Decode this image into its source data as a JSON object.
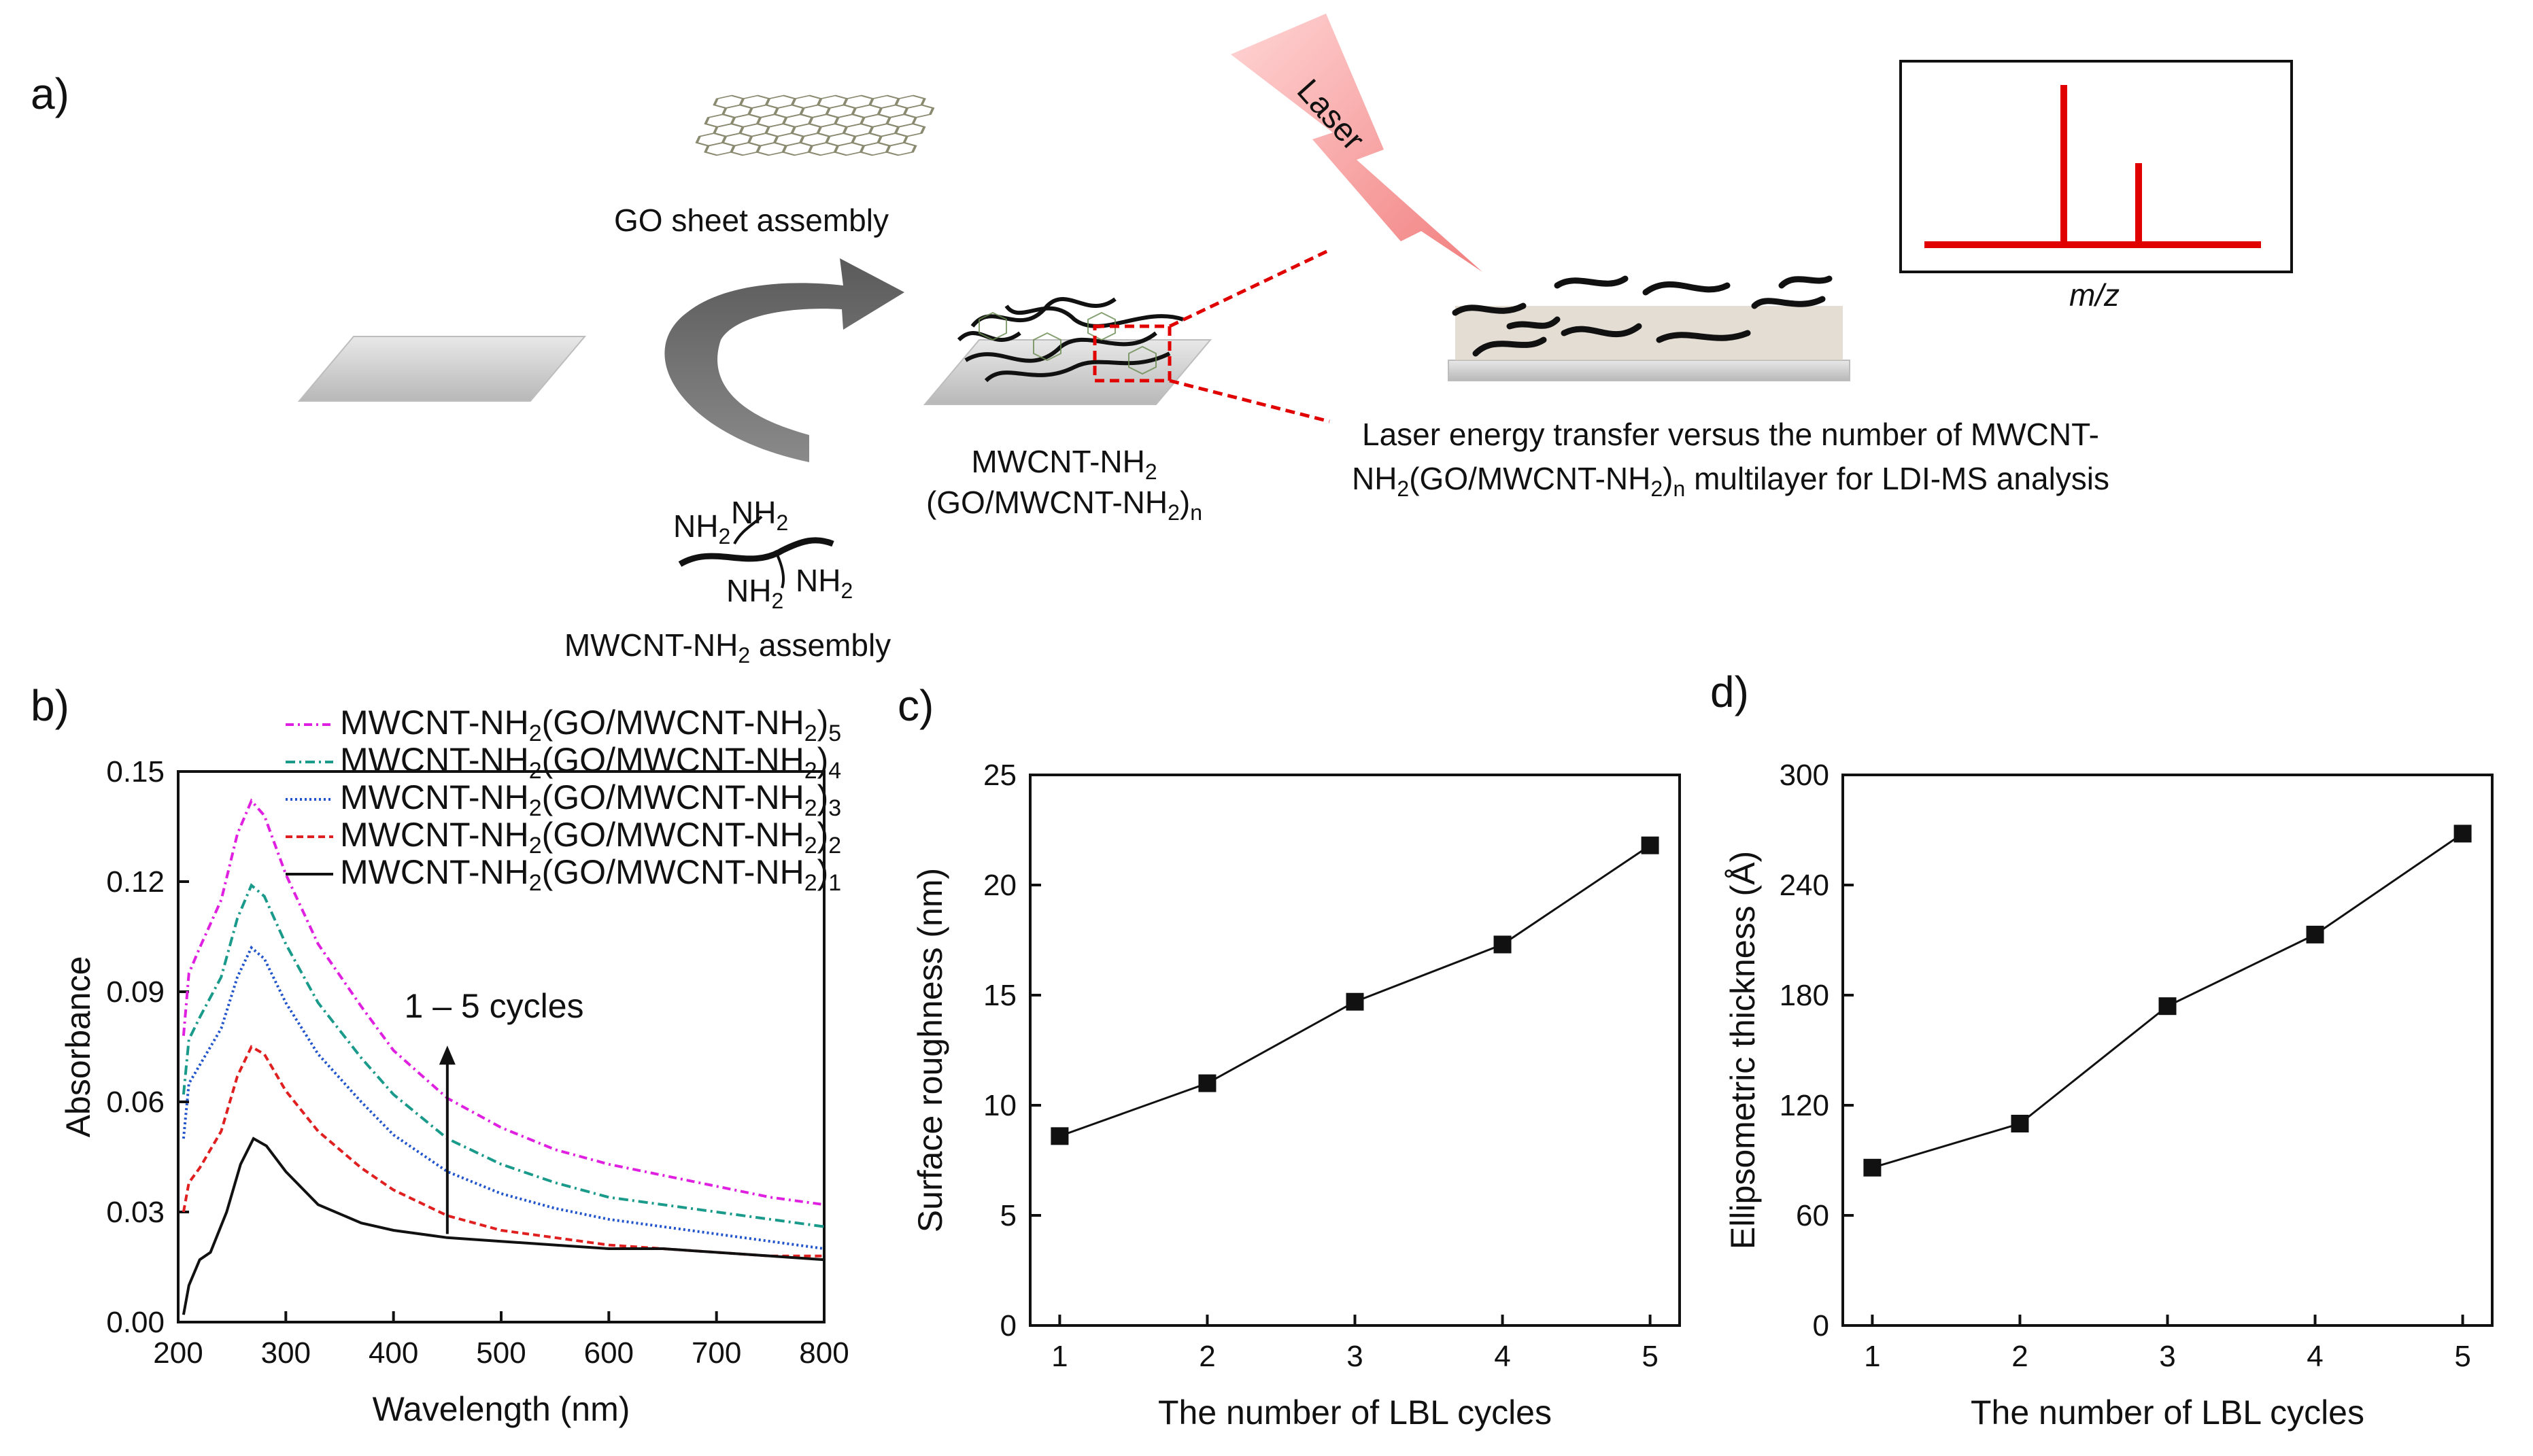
{
  "panels": {
    "a": "a)",
    "b": "b)",
    "c": "c)",
    "d": "d)"
  },
  "schematic": {
    "go_sheet_label": "GO sheet assembly",
    "mwcnt_assembly_label": "MWCNT-NH",
    "mwcnt_assembly_sub": "2",
    "mwcnt_assembly_tail": " assembly",
    "nh2_labels": [
      "NH",
      "NH",
      "NH",
      "NH"
    ],
    "nh2_sub": "2",
    "multilayer_line1": "MWCNT-NH",
    "multilayer_line1_sub": "2",
    "multilayer_line2": "(GO/MWCNT-NH",
    "multilayer_line2_sub": "2",
    "multilayer_line2_tail": ")",
    "multilayer_line2_n": "n",
    "laser_label": "Laser",
    "desc_line1": "Laser energy transfer versus the number of MWCNT-",
    "desc_line2_a": "NH",
    "desc_line2_sub": "2",
    "desc_line2_b": "(GO/MWCNT-NH",
    "desc_line2_sub2": "2",
    "desc_line2_c": ")",
    "desc_line2_n": "n",
    "desc_line2_d": " multilayer for LDI-MS  analysis",
    "mz_label": "m/z",
    "colors": {
      "laser": "#f08080",
      "spectrum": "#e00000",
      "dashed_box": "#e00000",
      "arrow": "#666666"
    }
  },
  "chart_data": [
    {
      "id": "b",
      "type": "line",
      "title": "",
      "xlabel": "Wavelength (nm)",
      "ylabel": "Absorbance",
      "xlim": [
        200,
        800
      ],
      "ylim": [
        0,
        0.15
      ],
      "xticks": [
        200,
        300,
        400,
        500,
        600,
        700,
        800
      ],
      "yticks": [
        0.0,
        0.03,
        0.06,
        0.09,
        0.12,
        0.15
      ],
      "ytick_labels": [
        "0.00",
        "0.03",
        "0.06",
        "0.09",
        "0.12",
        "0.15"
      ],
      "annotation": "1 – 5 cycles",
      "legend_prefix": "MWCNT-NH",
      "legend_mid": "(GO/MWCNT-NH",
      "legend_sub": "2",
      "legend_close": ")",
      "series": [
        {
          "name": "MWCNT-NH2(GO/MWCNT-NH2)5",
          "n": "5",
          "color": "#e020e0",
          "dash": "12,6,3,6",
          "x": [
            205,
            210,
            220,
            240,
            255,
            268,
            280,
            300,
            330,
            370,
            400,
            450,
            500,
            550,
            600,
            650,
            700,
            750,
            800
          ],
          "y": [
            0.078,
            0.095,
            0.102,
            0.115,
            0.133,
            0.142,
            0.138,
            0.122,
            0.103,
            0.086,
            0.074,
            0.061,
            0.053,
            0.047,
            0.043,
            0.04,
            0.037,
            0.034,
            0.032
          ]
        },
        {
          "name": "MWCNT-NH2(GO/MWCNT-NH2)4",
          "n": "4",
          "color": "#1a9a8a",
          "dash": "14,6,3,6",
          "x": [
            205,
            210,
            220,
            240,
            255,
            268,
            280,
            300,
            330,
            370,
            400,
            450,
            500,
            550,
            600,
            650,
            700,
            750,
            800
          ],
          "y": [
            0.062,
            0.077,
            0.083,
            0.094,
            0.11,
            0.119,
            0.116,
            0.103,
            0.087,
            0.072,
            0.062,
            0.05,
            0.043,
            0.038,
            0.034,
            0.032,
            0.03,
            0.028,
            0.026
          ]
        },
        {
          "name": "MWCNT-NH2(GO/MWCNT-NH2)3",
          "n": "3",
          "color": "#2255cc",
          "dash": "3,4",
          "x": [
            205,
            210,
            220,
            240,
            255,
            268,
            280,
            300,
            330,
            370,
            400,
            450,
            500,
            550,
            600,
            650,
            700,
            750,
            800
          ],
          "y": [
            0.05,
            0.065,
            0.07,
            0.08,
            0.094,
            0.102,
            0.099,
            0.087,
            0.073,
            0.06,
            0.051,
            0.041,
            0.035,
            0.031,
            0.028,
            0.026,
            0.024,
            0.022,
            0.02
          ]
        },
        {
          "name": "MWCNT-NH2(GO/MWCNT-NH2)2",
          "n": "2",
          "color": "#e02020",
          "dash": "10,6",
          "x": [
            205,
            210,
            220,
            240,
            255,
            268,
            280,
            300,
            330,
            370,
            400,
            450,
            500,
            550,
            600,
            650,
            700,
            750,
            800
          ],
          "y": [
            0.03,
            0.038,
            0.042,
            0.052,
            0.067,
            0.075,
            0.073,
            0.063,
            0.052,
            0.042,
            0.036,
            0.029,
            0.025,
            0.023,
            0.021,
            0.02,
            0.019,
            0.018,
            0.018
          ]
        },
        {
          "name": "MWCNT-NH2(GO/MWCNT-NH2)1",
          "n": "1",
          "color": "#111111",
          "dash": "",
          "x": [
            205,
            210,
            220,
            230,
            245,
            258,
            270,
            282,
            300,
            330,
            370,
            400,
            450,
            500,
            550,
            600,
            650,
            700,
            750,
            800
          ],
          "y": [
            0.002,
            0.01,
            0.017,
            0.019,
            0.03,
            0.043,
            0.05,
            0.048,
            0.041,
            0.032,
            0.027,
            0.025,
            0.023,
            0.022,
            0.021,
            0.02,
            0.02,
            0.019,
            0.018,
            0.017
          ]
        }
      ]
    },
    {
      "id": "c",
      "type": "line",
      "title": "",
      "xlabel": "The number of LBL cycles",
      "ylabel": "Surface roughness (nm)",
      "xlim": [
        0.8,
        5.2
      ],
      "ylim": [
        0,
        25
      ],
      "xticks": [
        1,
        2,
        3,
        4,
        5
      ],
      "yticks": [
        0,
        5,
        10,
        15,
        20,
        25
      ],
      "x": [
        1,
        2,
        3,
        4,
        5
      ],
      "y": [
        8.6,
        11.0,
        14.7,
        17.3,
        21.8
      ],
      "color": "#111111"
    },
    {
      "id": "d",
      "type": "line",
      "title": "",
      "xlabel": "The number of LBL cycles",
      "ylabel": "Ellipsometric thickness (Å)",
      "xlim": [
        0.8,
        5.2
      ],
      "ylim": [
        0,
        300
      ],
      "xticks": [
        1,
        2,
        3,
        4,
        5
      ],
      "yticks": [
        0,
        60,
        120,
        180,
        240,
        300
      ],
      "x": [
        1,
        2,
        3,
        4,
        5
      ],
      "y": [
        86,
        110,
        174,
        213,
        268
      ],
      "color": "#111111"
    }
  ]
}
